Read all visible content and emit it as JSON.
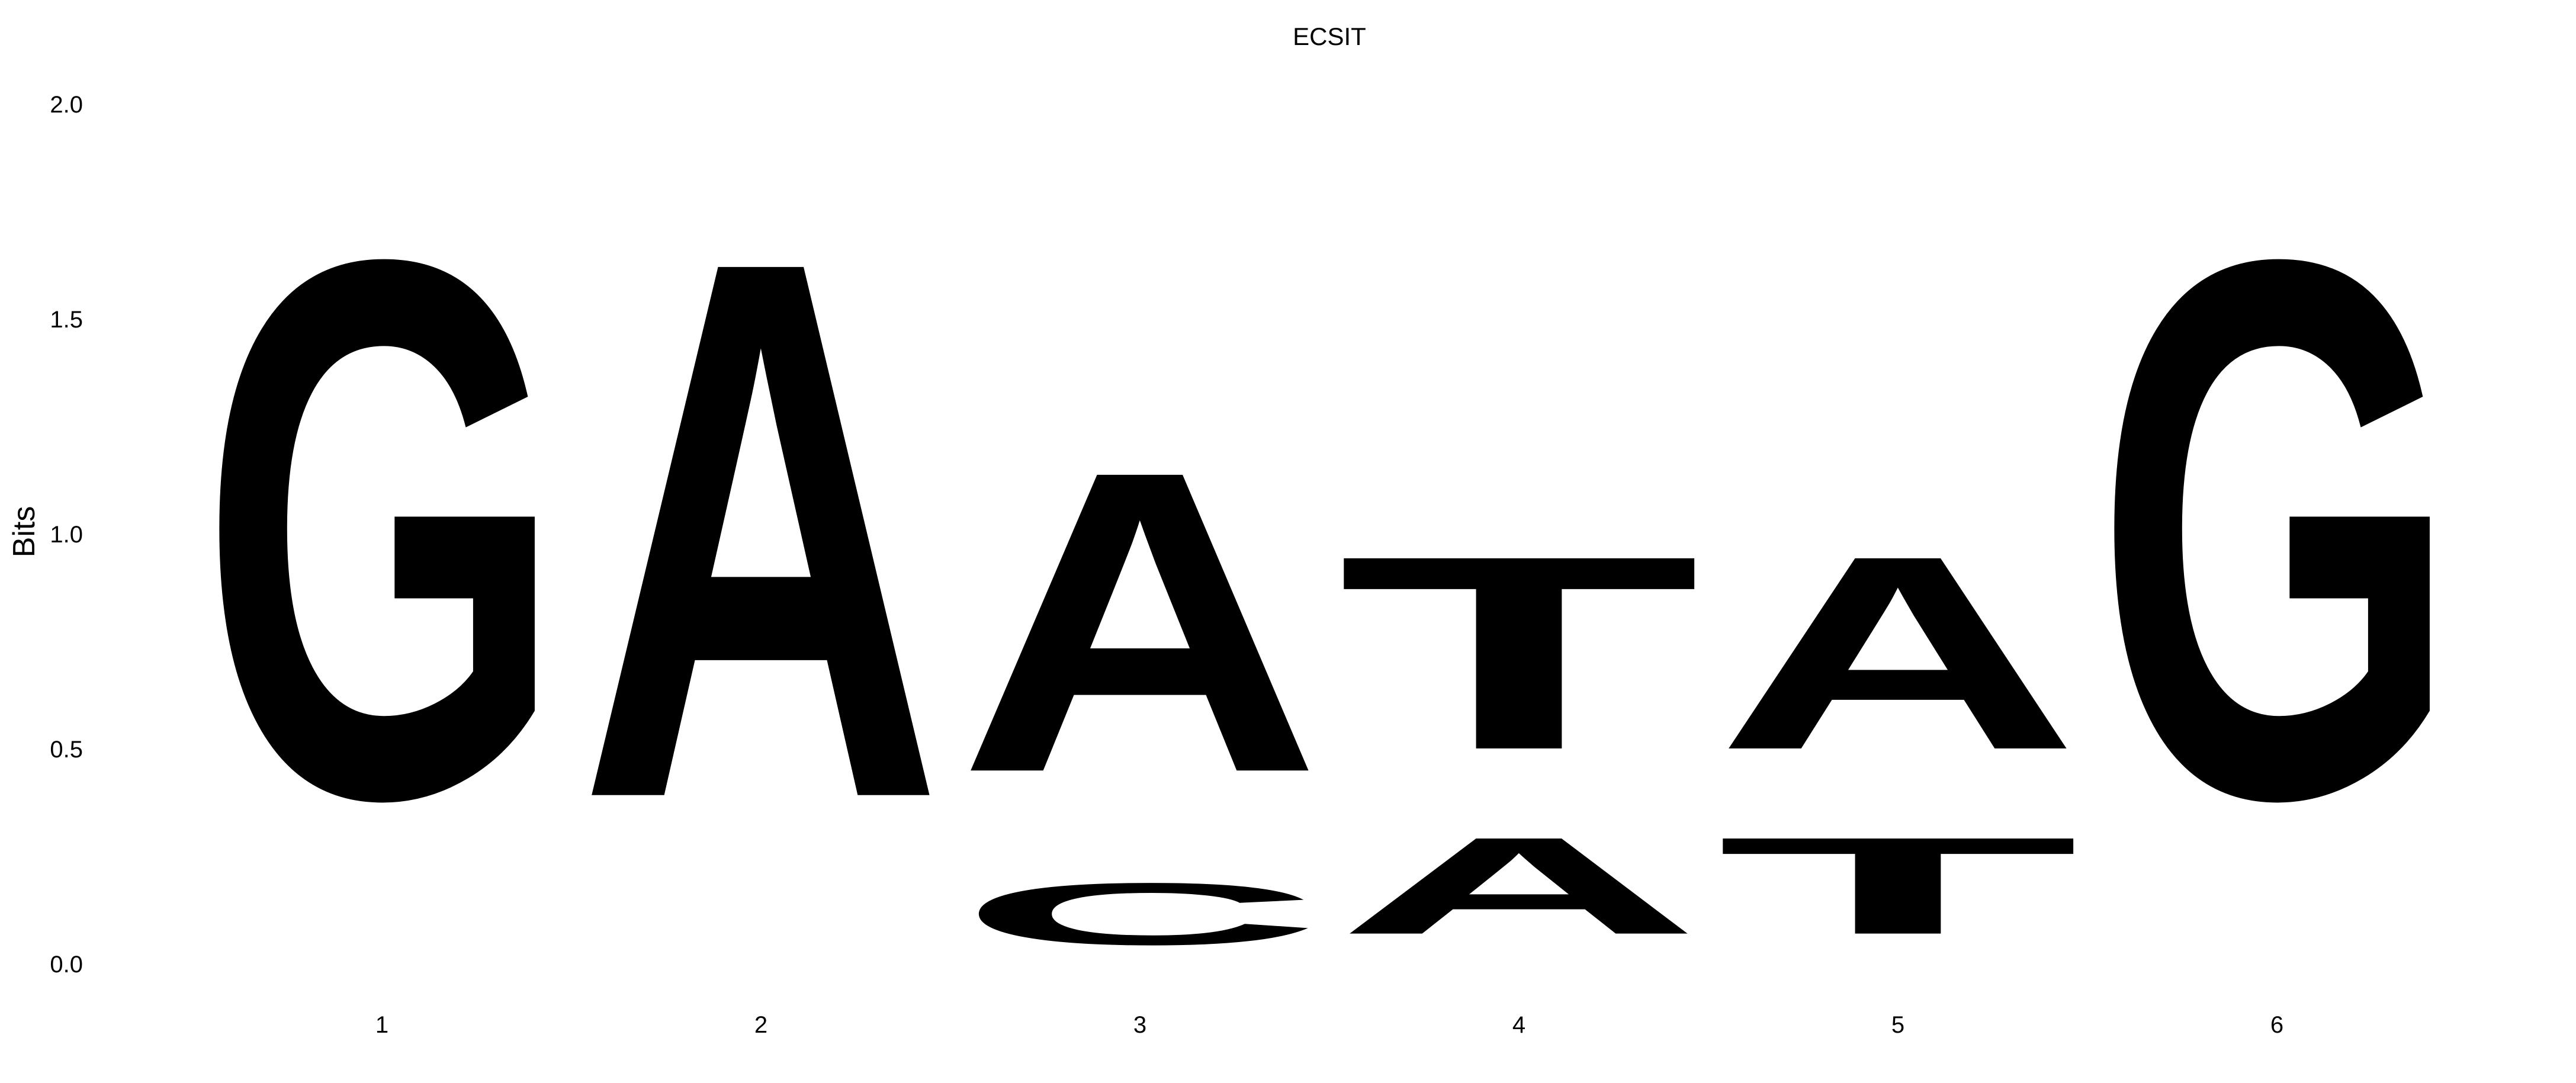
{
  "chart_data": {
    "type": "sequence-logo",
    "title": "ECSIT",
    "ylabel": "Bits",
    "xlabel": "",
    "ylim": [
      0,
      2
    ],
    "yticks": [
      {
        "value": 0.0,
        "label": "0.0"
      },
      {
        "value": 0.5,
        "label": "0.5"
      },
      {
        "value": 1.0,
        "label": "1.0"
      },
      {
        "value": 1.5,
        "label": "1.5"
      },
      {
        "value": 2.0,
        "label": "2.0"
      }
    ],
    "positions": [
      "1",
      "2",
      "3",
      "4",
      "5",
      "6"
    ],
    "letter_colors": {
      "A": "#109648",
      "C": "#255c99",
      "G": "#f7b32b",
      "T": "#d62839"
    },
    "columns": [
      [
        {
          "letter": "G",
          "bits": 2.0
        }
      ],
      [
        {
          "letter": "A",
          "bits": 2.0
        }
      ],
      [
        {
          "letter": "C",
          "bits": 0.23
        },
        {
          "letter": "A",
          "bits": 1.12
        }
      ],
      [
        {
          "letter": "A",
          "bits": 0.36
        },
        {
          "letter": "T",
          "bits": 0.72
        }
      ],
      [
        {
          "letter": "T",
          "bits": 0.36
        },
        {
          "letter": "A",
          "bits": 0.72
        }
      ],
      [
        {
          "letter": "G",
          "bits": 2.0
        }
      ]
    ],
    "grid": false,
    "legend": "none"
  }
}
